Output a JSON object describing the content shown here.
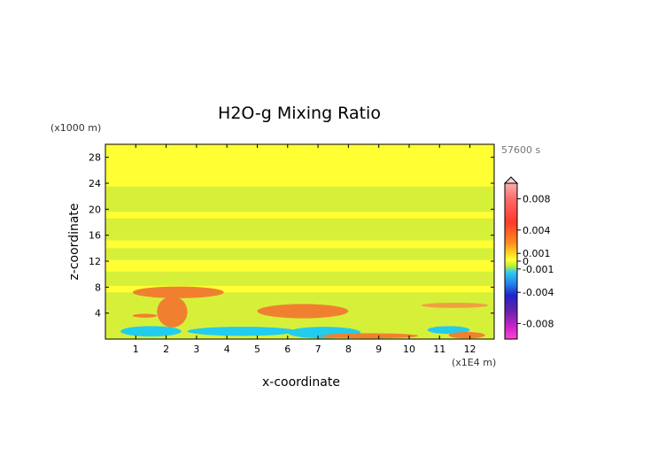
{
  "chart_data": {
    "type": "heatmap",
    "title": "H2O-g Mixing Ratio",
    "time_label": "57600 s",
    "xlabel": "x-coordinate",
    "ylabel": "z-coordinate",
    "x_unit": "(x1E4 m)",
    "y_unit": "(x1000 m)",
    "xlim": [
      0,
      12.8
    ],
    "ylim": [
      0,
      30
    ],
    "x_ticks": [
      "1",
      "2",
      "3",
      "4",
      "5",
      "6",
      "7",
      "8",
      "9",
      "10",
      "11",
      "12"
    ],
    "y_ticks": [
      "4",
      "8",
      "12",
      "16",
      "20",
      "24",
      "28"
    ],
    "colorbar": {
      "labels": [
        "0.008",
        "0.004",
        "0.001",
        "0",
        "-0.001",
        "-0.004",
        "-0.008"
      ],
      "values": [
        0.008,
        0.004,
        0.001,
        0,
        -0.001,
        -0.004,
        -0.008
      ],
      "range": [
        -0.01,
        0.01
      ]
    },
    "bands": [
      {
        "name": "base",
        "y0": 0,
        "y1": 30,
        "color": "#d6f03a"
      },
      {
        "name": "upper-yellow",
        "y0": 23.5,
        "y1": 30,
        "color": "#ffff33"
      },
      {
        "name": "mid-yellow-1",
        "y0": 18.6,
        "y1": 19.6,
        "color": "#ffff33"
      },
      {
        "name": "mid-yellow-2",
        "y0": 14.0,
        "y1": 15.2,
        "color": "#ffff33"
      },
      {
        "name": "mid-yellow-3",
        "y0": 10.4,
        "y1": 12.2,
        "color": "#ffff33"
      },
      {
        "name": "low-yellow",
        "y0": 7.2,
        "y1": 8.2,
        "color": "#ffff33"
      }
    ],
    "features": [
      {
        "name": "plume-1",
        "x": 2.4,
        "z": 7.2,
        "rx": 1.5,
        "rz": 0.9,
        "color": "#f08030"
      },
      {
        "name": "plume-1-stem",
        "x": 2.2,
        "z": 4.2,
        "rx": 0.5,
        "rz": 2.4,
        "color": "#f08030"
      },
      {
        "name": "plume-2",
        "x": 6.5,
        "z": 4.3,
        "rx": 1.5,
        "rz": 1.1,
        "color": "#f08030"
      },
      {
        "name": "blue-surface-1",
        "x": 1.5,
        "z": 1.2,
        "rx": 1.0,
        "rz": 0.8,
        "color": "#22ccee"
      },
      {
        "name": "blue-surface-2",
        "x": 4.5,
        "z": 1.2,
        "rx": 1.8,
        "rz": 0.7,
        "color": "#22ccee"
      },
      {
        "name": "blue-surface-3",
        "x": 7.2,
        "z": 1.0,
        "rx": 1.2,
        "rz": 0.9,
        "color": "#22ccee"
      },
      {
        "name": "blue-surface-4",
        "x": 11.3,
        "z": 1.4,
        "rx": 0.7,
        "rz": 0.6,
        "color": "#22ccee"
      },
      {
        "name": "orange-surface-1",
        "x": 8.7,
        "z": 0.5,
        "rx": 1.6,
        "rz": 0.4,
        "color": "#f08030"
      },
      {
        "name": "orange-surface-2",
        "x": 11.9,
        "z": 0.6,
        "rx": 0.6,
        "rz": 0.5,
        "color": "#f08030"
      },
      {
        "name": "orange-surface-3",
        "x": 1.3,
        "z": 3.6,
        "rx": 0.4,
        "rz": 0.3,
        "color": "#f08030"
      },
      {
        "name": "orange-right-streak",
        "x": 11.5,
        "z": 5.2,
        "rx": 1.1,
        "rz": 0.4,
        "color": "#f0a040"
      }
    ]
  },
  "colors": {
    "frame": "#000000",
    "unit_text": "#777777"
  }
}
